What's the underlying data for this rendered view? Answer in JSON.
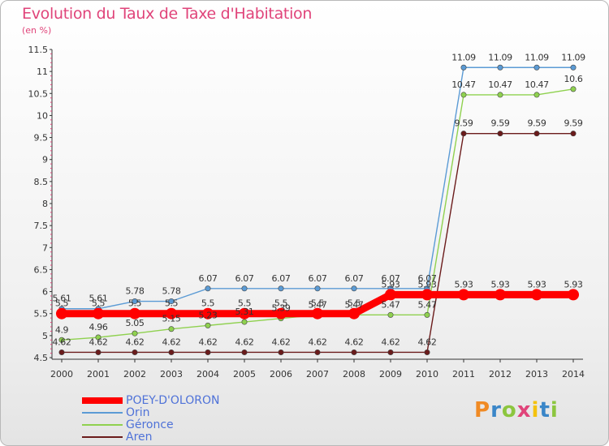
{
  "chart_title": "Evolution du Taux de Taxe d'Habitation",
  "chart_subtitle": "(en %)",
  "logo_text": "Proxiti",
  "logo_colors": [
    "#f08a24",
    "#3a86c8",
    "#8cc63f",
    "#e0447a",
    "#f4c20d",
    "#3a86c8",
    "#8cc63f"
  ],
  "chart_data": {
    "type": "line",
    "title": "Evolution du Taux de Taxe d'Habitation",
    "ylabel": "(en %)",
    "x": [
      2000,
      2001,
      2002,
      2003,
      2004,
      2005,
      2006,
      2007,
      2008,
      2009,
      2010,
      2011,
      2012,
      2013,
      2014
    ],
    "ylim": [
      4.5,
      11.5
    ],
    "yticks": [
      "4.5",
      "5",
      "5.5",
      "6",
      "6.5",
      "7",
      "7.5",
      "8",
      "8.5",
      "9",
      "9.5",
      "10",
      "10.5",
      "11",
      "11.5"
    ],
    "grid": false,
    "legend_position": "bottom-left",
    "series": [
      {
        "name": "POEY-D'OLORON",
        "color": "#ff0000",
        "values": [
          5.5,
          5.5,
          5.5,
          5.5,
          5.5,
          5.5,
          5.5,
          5.5,
          5.5,
          5.93,
          5.93,
          5.93,
          5.93,
          5.93,
          5.93
        ],
        "labels": [
          "5.5",
          "5.5",
          "5.5",
          "5.5",
          "5.5",
          "5.5",
          "5.5",
          "5.5",
          "5.5",
          "5.93",
          "5.93",
          "5.93",
          "5.93",
          "5.93",
          "5.93"
        ]
      },
      {
        "name": "Orin",
        "color": "#5b9bd5",
        "values": [
          5.61,
          5.61,
          5.78,
          5.78,
          6.07,
          6.07,
          6.07,
          6.07,
          6.07,
          6.07,
          6.07,
          11.09,
          11.09,
          11.09,
          11.09
        ],
        "labels": [
          "5.61",
          "5.61",
          "5.78",
          "5.78",
          "6.07",
          "6.07",
          "6.07",
          "6.07",
          "6.07",
          "6.07",
          "6.07",
          "11.09",
          "11.09",
          "11.09",
          "11.09"
        ]
      },
      {
        "name": "Géronce",
        "color": "#8fd14f",
        "values": [
          4.9,
          4.96,
          5.05,
          5.15,
          5.23,
          5.31,
          5.39,
          5.47,
          5.47,
          5.47,
          5.47,
          10.47,
          10.47,
          10.47,
          10.6
        ],
        "labels": [
          "4.9",
          "4.96",
          "5.05",
          "5.15",
          "5.23",
          "5.31",
          "5.39",
          "5.47",
          "5.47",
          "5.47",
          "5.47",
          "10.47",
          "10.47",
          "10.47",
          "10.6"
        ]
      },
      {
        "name": "Aren",
        "color": "#6b1b1b",
        "values": [
          4.62,
          4.62,
          4.62,
          4.62,
          4.62,
          4.62,
          4.62,
          4.62,
          4.62,
          4.62,
          4.62,
          9.59,
          9.59,
          9.59,
          9.59
        ],
        "labels": [
          "4.62",
          "4.62",
          "4.62",
          "4.62",
          "4.62",
          "4.62",
          "4.62",
          "4.62",
          "4.62",
          "4.62",
          "4.62",
          "9.59",
          "9.59",
          "9.59",
          "9.59"
        ]
      }
    ]
  }
}
